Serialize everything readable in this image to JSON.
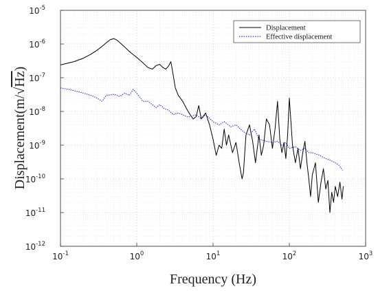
{
  "chart_data": {
    "type": "line",
    "xscale": "log",
    "yscale": "log",
    "xlim": [
      0.1,
      1000
    ],
    "ylim": [
      1e-12,
      1e-05
    ],
    "xlabel": "Frequency (Hz)",
    "ylabel_main": "Displacement",
    "ylabel_unit_prefix": "(m/",
    "ylabel_unit_root": "Hz",
    "ylabel_unit_suffix": ")",
    "grid": true,
    "legend_position": "top-right",
    "x_ticks": [
      {
        "base": "10",
        "exp": "-1",
        "value": 0.1
      },
      {
        "base": "10",
        "exp": "0",
        "value": 1
      },
      {
        "base": "10",
        "exp": "1",
        "value": 10
      },
      {
        "base": "10",
        "exp": "2",
        "value": 100
      },
      {
        "base": "10",
        "exp": "3",
        "value": 1000
      }
    ],
    "y_ticks": [
      {
        "base": "10",
        "exp": "-5",
        "value": 1e-05
      },
      {
        "base": "10",
        "exp": "-6",
        "value": 1e-06
      },
      {
        "base": "10",
        "exp": "-7",
        "value": 1e-07
      },
      {
        "base": "10",
        "exp": "-8",
        "value": 1e-08
      },
      {
        "base": "10",
        "exp": "-9",
        "value": 1e-09
      },
      {
        "base": "10",
        "exp": "-10",
        "value": 1e-10
      },
      {
        "base": "10",
        "exp": "-11",
        "value": 1e-11
      },
      {
        "base": "10",
        "exp": "-12",
        "value": 1e-12
      }
    ],
    "series": [
      {
        "name": "Displacement",
        "color": "#000000",
        "style": "solid",
        "x": [
          0.1,
          0.15,
          0.2,
          0.25,
          0.3,
          0.35,
          0.4,
          0.45,
          0.5,
          0.55,
          0.6,
          0.7,
          0.8,
          1.0,
          1.2,
          1.4,
          1.6,
          1.8,
          2.0,
          2.2,
          2.4,
          2.6,
          2.8,
          3.0,
          3.2,
          3.5,
          4.0,
          4.5,
          5.0,
          5.5,
          6.0,
          6.5,
          7.0,
          8.0,
          9.0,
          10,
          11,
          12,
          13,
          14,
          15,
          16,
          18,
          20,
          22,
          24,
          25,
          27,
          30,
          33,
          36,
          40,
          43,
          46,
          50,
          55,
          60,
          65,
          70,
          75,
          80,
          85,
          90,
          95,
          100,
          110,
          120,
          130,
          140,
          150,
          160,
          170,
          180,
          190,
          200,
          220,
          240,
          260,
          280,
          300,
          320,
          340,
          360,
          380,
          400,
          430,
          460,
          490,
          510
        ],
        "y": [
          2.4e-07,
          3e-07,
          3.8e-07,
          5e-07,
          6.5e-07,
          8.5e-07,
          1.1e-06,
          1.35e-06,
          1.45e-06,
          1.3e-06,
          1.1e-06,
          8e-07,
          6e-07,
          4e-07,
          2.8e-07,
          2e-07,
          1.8e-07,
          2.3e-07,
          2.5e-07,
          2e-07,
          1.8e-07,
          2.2e-07,
          3e-07,
          1.2e-07,
          5e-08,
          3e-08,
          2e-08,
          1.2e-08,
          8e-09,
          6e-09,
          7e-09,
          1.5e-08,
          6e-09,
          9e-09,
          4e-09,
          1.5e-09,
          5e-10,
          1e-09,
          8e-10,
          3e-09,
          1e-09,
          2e-09,
          6e-10,
          1.2e-09,
          3e-10,
          1e-10,
          1.5e-10,
          2e-09,
          4e-09,
          1.3e-09,
          3e-10,
          2e-09,
          5e-10,
          1e-09,
          6e-09,
          4e-09,
          8e-10,
          3e-09,
          2e-08,
          1.5e-09,
          6e-10,
          1.2e-09,
          4e-10,
          2e-09,
          2.5e-08,
          1e-09,
          3e-10,
          8e-10,
          2e-10,
          6e-10,
          1.3e-09,
          3e-10,
          1e-10,
          3e-11,
          1.3e-10,
          3e-10,
          2e-11,
          8e-11,
          2e-10,
          5e-11,
          9e-11,
          1e-11,
          4e-11,
          2e-11,
          6e-11,
          3e-11,
          8e-11,
          2.5e-11,
          6e-11
        ]
      },
      {
        "name": "Effective displacement",
        "color": "#1f2fd6",
        "style": "dotted",
        "x": [
          0.1,
          0.13,
          0.16,
          0.2,
          0.25,
          0.3,
          0.35,
          0.4,
          0.5,
          0.6,
          0.7,
          0.8,
          0.9,
          1.0,
          1.2,
          1.4,
          1.6,
          1.8,
          2.0,
          2.3,
          2.6,
          3.0,
          3.5,
          4.0,
          4.5,
          5.0,
          6.0,
          7.0,
          8.0,
          10,
          12,
          14,
          17,
          20,
          25,
          30,
          35,
          40,
          50,
          60,
          70,
          80,
          90,
          100,
          120,
          140,
          160,
          180,
          200,
          250,
          300,
          350,
          400,
          450,
          500
        ],
        "y": [
          5e-08,
          4.5e-08,
          4e-08,
          3.5e-08,
          3e-08,
          2.5e-08,
          2e-08,
          3e-08,
          3.2e-08,
          2.8e-08,
          3.5e-08,
          3e-08,
          4.5e-08,
          3.5e-08,
          2e-08,
          2e-08,
          1.6e-08,
          1.3e-08,
          1.6e-08,
          1.2e-08,
          1.1e-08,
          8e-09,
          9e-09,
          8e-09,
          7e-09,
          7e-09,
          8e-09,
          6e-09,
          8e-09,
          5e-09,
          4e-09,
          5e-09,
          3.5e-09,
          4e-09,
          2.5e-09,
          2e-09,
          3e-09,
          1.5e-09,
          1.3e-09,
          1.2e-09,
          1.3e-09,
          1e-09,
          1.2e-09,
          8e-10,
          9e-10,
          7e-10,
          8e-10,
          6e-10,
          6e-10,
          5e-10,
          4e-10,
          3.5e-10,
          3e-10,
          2.5e-10,
          1.8e-10
        ]
      }
    ]
  }
}
